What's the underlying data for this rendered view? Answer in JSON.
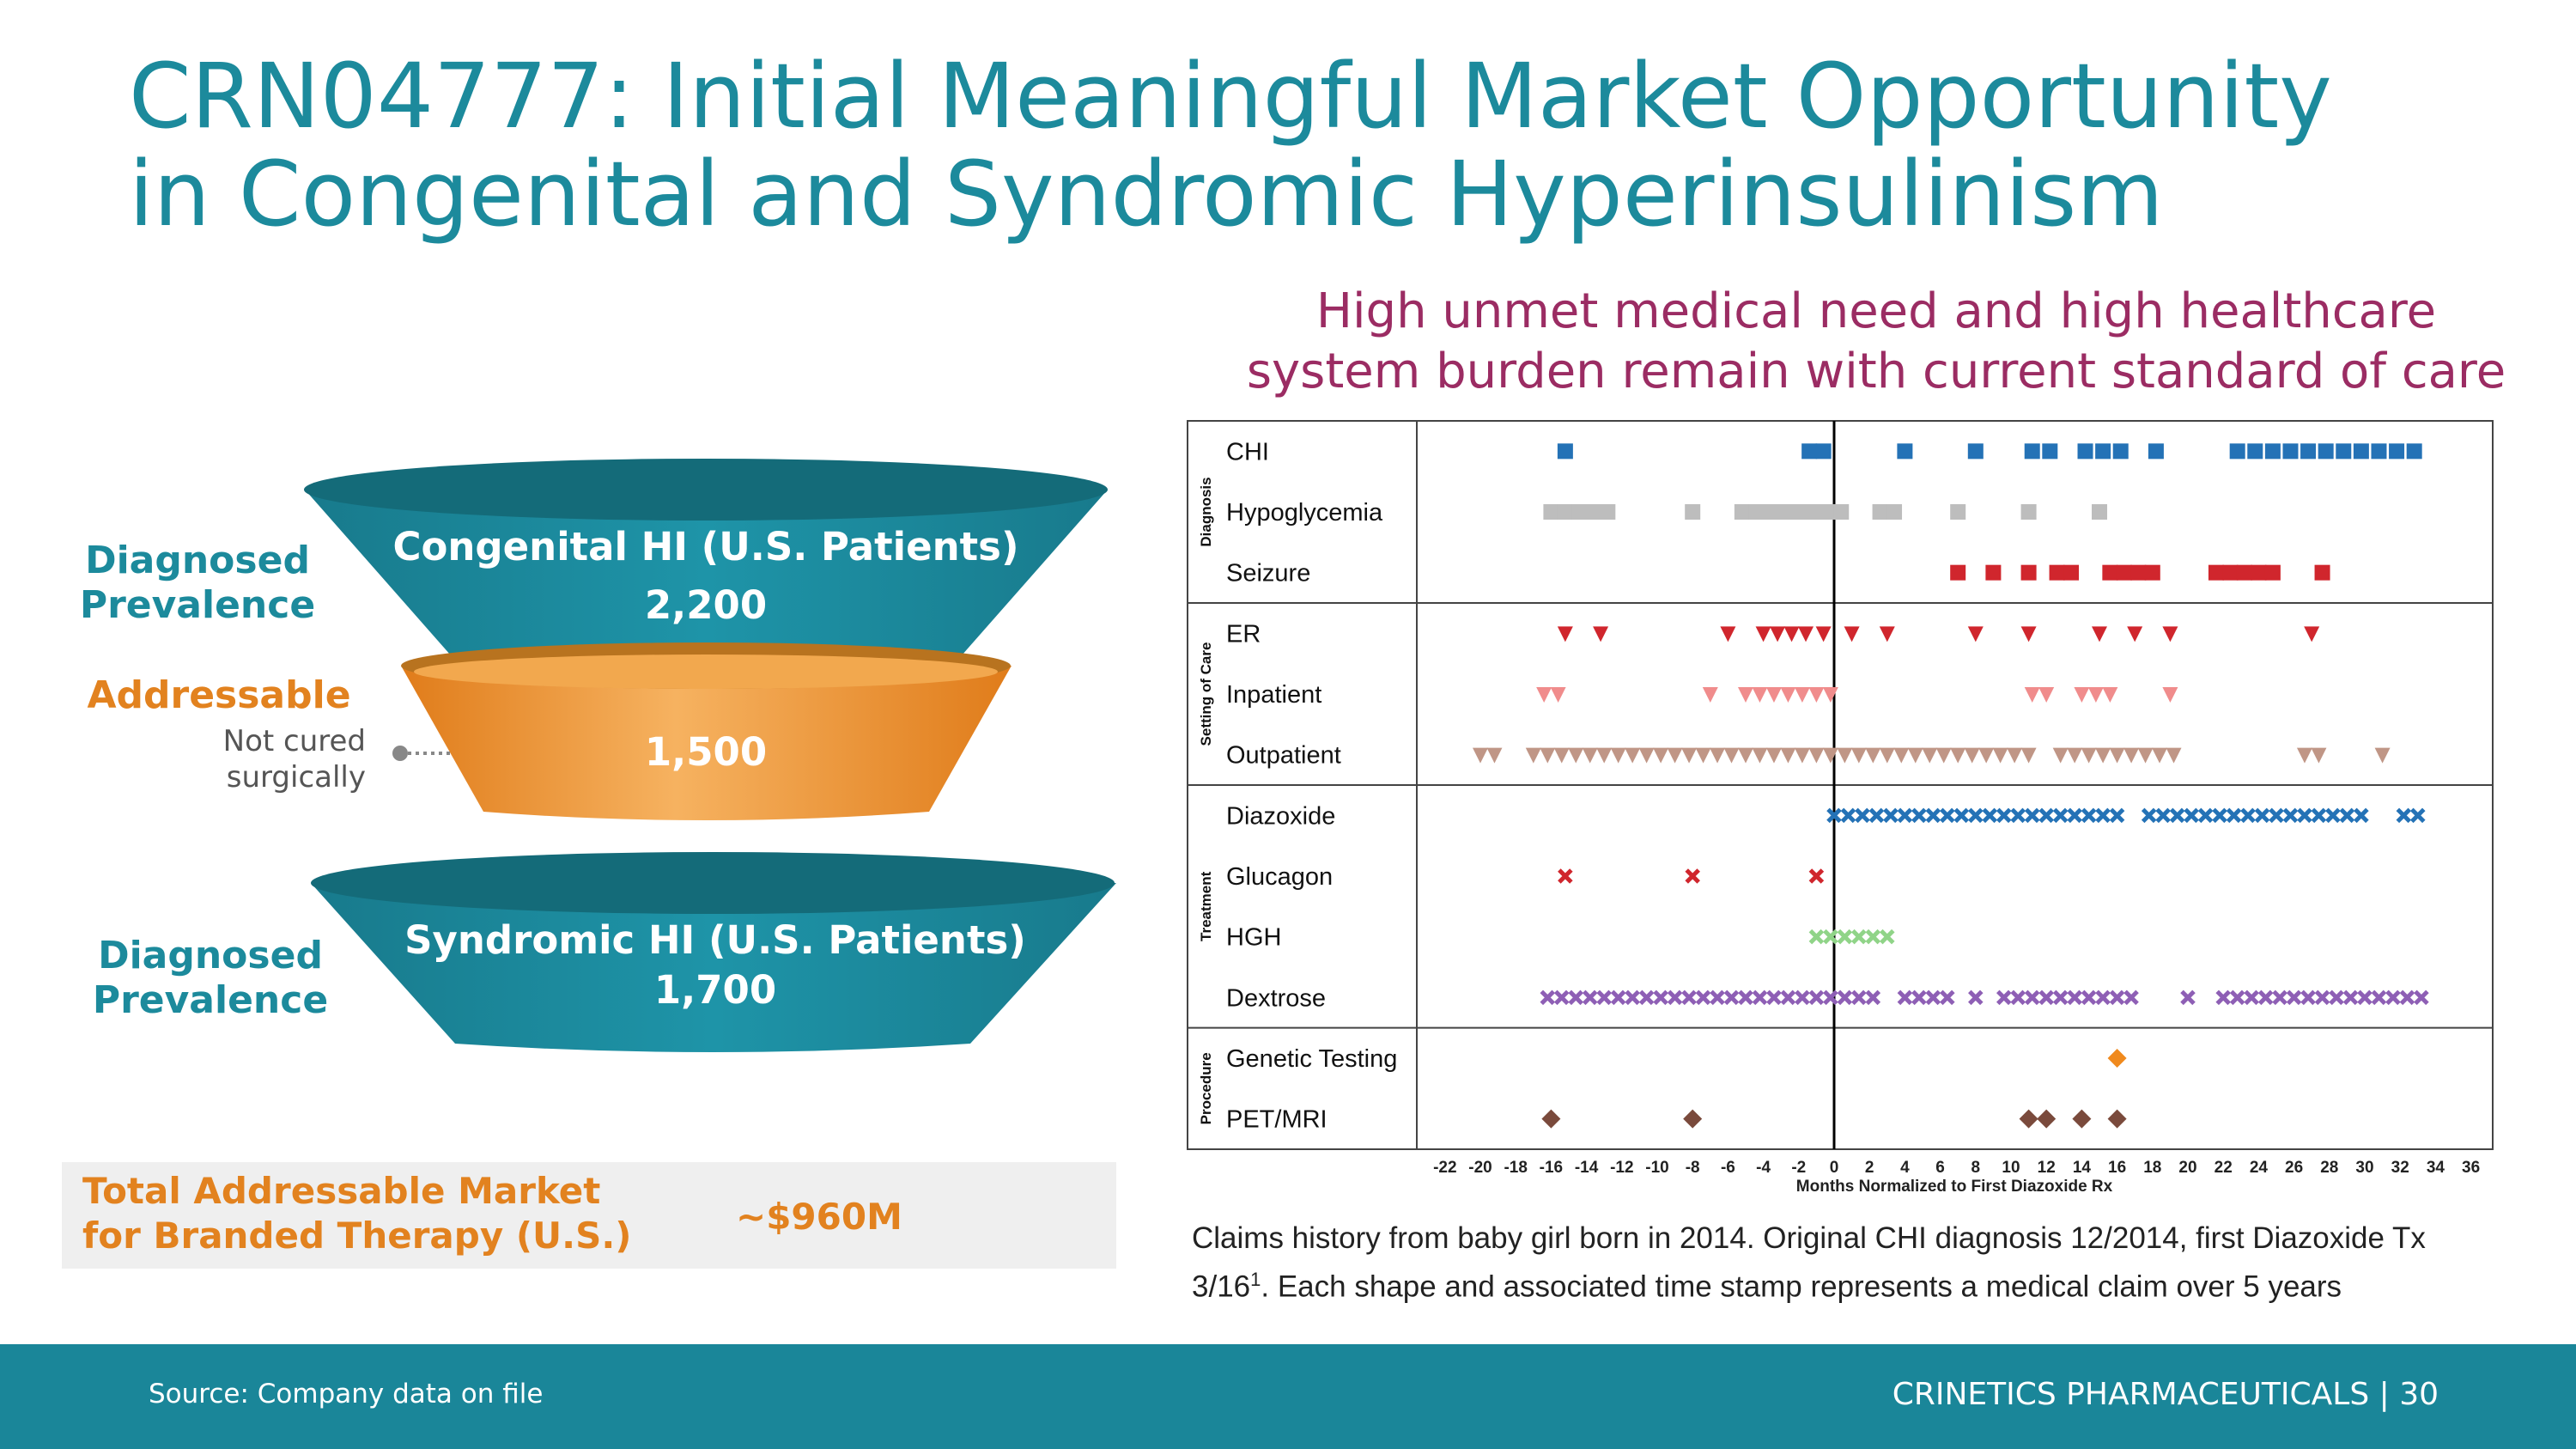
{
  "title": {
    "line1": "CRN04777: Initial Meaningful Market Opportunity",
    "line2": "in Congenital and Syndromic Hyperinsulinism"
  },
  "subtitle": {
    "line1": "High unmet medical need and high healthcare",
    "line2": "system burden remain with current standard of care"
  },
  "funnel": {
    "top": {
      "label_line1": "Diagnosed",
      "label_line2": "Prevalence",
      "title": "Congenital HI (U.S. Patients)",
      "value": "2,200",
      "color": "#1a8699"
    },
    "middle": {
      "label": "Addressable",
      "note_line1": "Not cured",
      "note_line2": "surgically",
      "value": "1,500",
      "color": "#f0a040"
    },
    "bottom": {
      "label_line1": "Diagnosed",
      "label_line2": "Prevalence",
      "title": "Syndromic HI (U.S. Patients)",
      "value": "1,700",
      "color": "#1a8699"
    }
  },
  "tam": {
    "label_line1": "Total Addressable Market",
    "label_line2": "for Branded Therapy (U.S.)",
    "value": "~$960M"
  },
  "chart_data": {
    "type": "scatter",
    "title": "",
    "xlabel": "Months Normalized to First Diazoxide Rx",
    "xlim": [
      -24,
      37
    ],
    "x_ticks": [
      -22,
      -20,
      -18,
      -16,
      -14,
      -12,
      -10,
      -8,
      -6,
      -4,
      -2,
      0,
      2,
      4,
      6,
      8,
      10,
      12,
      14,
      16,
      18,
      20,
      22,
      24,
      26,
      28,
      30,
      32,
      34,
      36
    ],
    "reference_line_x": 0,
    "groups": [
      {
        "name": "Diagnosis",
        "rows": [
          "CHI",
          "Hypoglycemia",
          "Seizure"
        ]
      },
      {
        "name": "Setting of Care",
        "rows": [
          "ER",
          "Inpatient",
          "Outpatient"
        ]
      },
      {
        "name": "Treatment",
        "rows": [
          "Diazoxide",
          "Glucagon",
          "HGH",
          "Dextrose"
        ]
      },
      {
        "name": "Procedure",
        "rows": [
          "Genetic Testing",
          "PET/MRI"
        ]
      }
    ],
    "series": [
      {
        "name": "CHI",
        "marker": "square",
        "color": "#2472b6",
        "x": [
          -15.2,
          -1.4,
          -0.6,
          4,
          8,
          11.2,
          12.2,
          14.2,
          15.2,
          16.2,
          18.2,
          22.8,
          23.8,
          24.8,
          25.8,
          26.8,
          27.8,
          28.8,
          29.8,
          30.8,
          31.8,
          32.8
        ]
      },
      {
        "name": "Hypoglycemia",
        "marker": "square",
        "color": "#bdbdbd",
        "x": [
          -16,
          -15.2,
          -14.4,
          -13.6,
          -12.8,
          -8,
          -5.2,
          -4.4,
          -3.6,
          -2.8,
          -2,
          -1.2,
          -0.4,
          0.4,
          2.6,
          3.4,
          7,
          11,
          15
        ]
      },
      {
        "name": "Seizure",
        "marker": "square",
        "color": "#d0262d",
        "x": [
          7,
          9,
          11,
          12.6,
          13.4,
          15.6,
          16.4,
          17.2,
          18,
          21.6,
          22.4,
          23.2,
          24,
          24.8,
          27.6
        ]
      },
      {
        "name": "ER",
        "marker": "triangle-down",
        "color": "#d0262d",
        "x": [
          -15.2,
          -13.2,
          -6,
          -4,
          -3.2,
          -2.4,
          -1.6,
          -0.6,
          1,
          3,
          8,
          11,
          15,
          17,
          19,
          27
        ]
      },
      {
        "name": "Inpatient",
        "marker": "triangle-down",
        "color": "#f08c8c",
        "x": [
          -16.4,
          -15.6,
          -7,
          -5,
          -4.2,
          -3.4,
          -2.6,
          -1.8,
          -1,
          -0.2,
          11.2,
          12,
          14,
          14.8,
          15.6,
          19
        ]
      },
      {
        "name": "Outpatient",
        "marker": "triangle-down",
        "color": "#c09686",
        "x": [
          -20,
          -19.2,
          -17,
          -16.2,
          -15.4,
          -14.6,
          -13.8,
          -13,
          -12.2,
          -11.4,
          -10.6,
          -9.8,
          -9,
          -8.2,
          -7.4,
          -6.6,
          -5.8,
          -5,
          -4.2,
          -3.4,
          -2.6,
          -1.8,
          -1,
          -0.2,
          0.6,
          1.4,
          2.2,
          3,
          3.8,
          4.6,
          5.4,
          6.2,
          7,
          7.8,
          8.6,
          9.4,
          10.2,
          11,
          12.8,
          13.6,
          14.4,
          15.2,
          16,
          16.8,
          17.6,
          18.4,
          19.2,
          26.6,
          27.4,
          31
        ]
      },
      {
        "name": "Diazoxide",
        "marker": "x",
        "color": "#2472b6",
        "x": [
          0,
          0.8,
          1.6,
          2.4,
          3.2,
          4,
          4.8,
          5.6,
          6.4,
          7.2,
          8,
          8.8,
          9.6,
          10.4,
          11.2,
          12,
          12.8,
          13.6,
          14.4,
          15.2,
          16,
          17.8,
          18.6,
          19.4,
          20.2,
          21,
          21.8,
          22.6,
          23.4,
          24.2,
          25,
          25.8,
          26.6,
          27.4,
          28.2,
          29,
          29.8,
          32.2,
          33
        ]
      },
      {
        "name": "Glucagon",
        "marker": "x",
        "color": "#d0262d",
        "x": [
          -15.2,
          -8,
          -1
        ]
      },
      {
        "name": "HGH",
        "marker": "x",
        "color": "#90d488",
        "x": [
          -1,
          -0.2,
          0.6,
          1.4,
          2.2,
          3
        ]
      },
      {
        "name": "Dextrose",
        "marker": "x",
        "color": "#8e5fb5",
        "x": [
          -16.2,
          -15.4,
          -14.6,
          -13.8,
          -13,
          -12.2,
          -11.4,
          -10.6,
          -9.8,
          -9,
          -8.2,
          -7.4,
          -6.6,
          -5.8,
          -5,
          -4.2,
          -3.4,
          -2.6,
          -1.8,
          -1,
          -0.2,
          0.6,
          1.4,
          2.2,
          4,
          4.8,
          5.6,
          6.4,
          8,
          9.6,
          10.4,
          11.2,
          12,
          12.8,
          13.6,
          14.4,
          15.2,
          16,
          16.8,
          20,
          22,
          22.8,
          23.6,
          24.4,
          25.2,
          26,
          26.8,
          27.6,
          28.4,
          29.2,
          30,
          30.8,
          31.6,
          32.4,
          33.2
        ]
      },
      {
        "name": "Genetic Testing",
        "marker": "diamond",
        "color": "#f08a1e",
        "x": [
          16
        ]
      },
      {
        "name": "PET/MRI",
        "marker": "diamond",
        "color": "#7a4a3c",
        "x": [
          -16,
          -8,
          11,
          12,
          14,
          16
        ]
      }
    ]
  },
  "caption": {
    "line1": "Claims history from baby girl born in 2014. Original CHI diagnosis 12/2014, first Diazoxide Tx",
    "line2_pre": "3/16",
    "line2_sup": "1",
    "line2_post": ". Each shape and associated time stamp represents a medical claim over 5 years"
  },
  "footer": {
    "source": "Source:  Company data on file",
    "brand": "CRINETICS PHARMACEUTICALS  |  30"
  }
}
